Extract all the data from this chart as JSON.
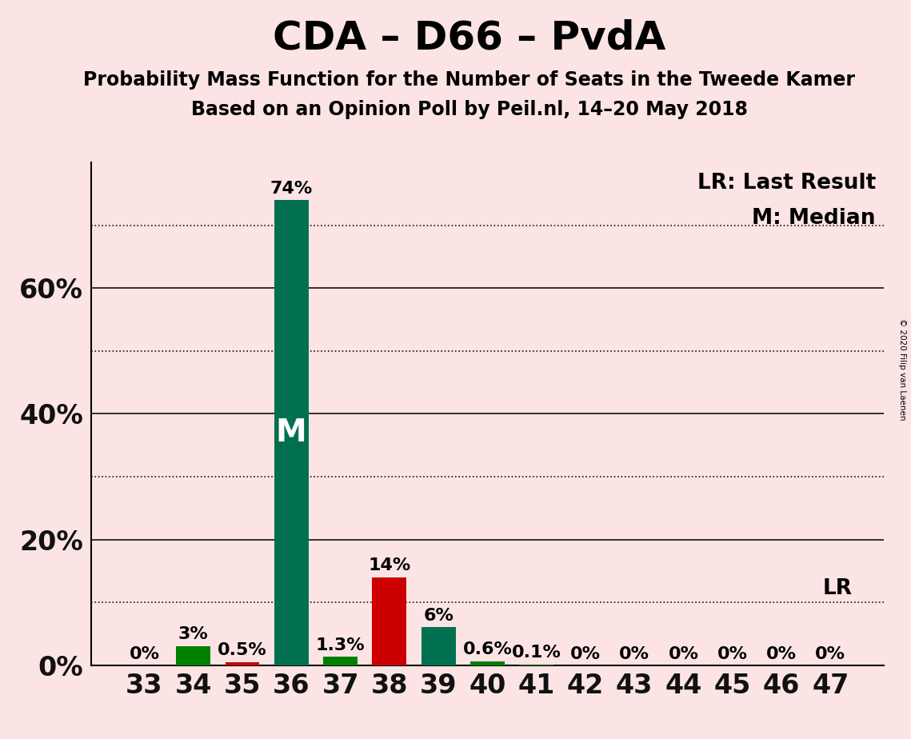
{
  "title": "CDA – D66 – PvdA",
  "subtitle1": "Probability Mass Function for the Number of Seats in the Tweede Kamer",
  "subtitle2": "Based on an Opinion Poll by Peil.nl, 14–20 May 2018",
  "copyright": "© 2020 Filip van Laenen",
  "background_color": "#fce4e4",
  "categories": [
    33,
    34,
    35,
    36,
    37,
    38,
    39,
    40,
    41,
    42,
    43,
    44,
    45,
    46,
    47
  ],
  "values": [
    0.0,
    3.0,
    0.5,
    74.0,
    1.3,
    14.0,
    6.0,
    0.6,
    0.1,
    0.0,
    0.0,
    0.0,
    0.0,
    0.0,
    0.0
  ],
  "bar_colors": [
    "#008000",
    "#008000",
    "#cc0000",
    "#007050",
    "#008000",
    "#cc0000",
    "#007050",
    "#008000",
    "#008000",
    "#008000",
    "#008000",
    "#008000",
    "#008000",
    "#008000",
    "#008000"
  ],
  "labels": [
    "0%",
    "3%",
    "0.5%",
    "74%",
    "1.3%",
    "14%",
    "6%",
    "0.6%",
    "0.1%",
    "0%",
    "0%",
    "0%",
    "0%",
    "0%",
    "0%"
  ],
  "median_seat": 36,
  "lr_value": 10.0,
  "lr_label": "LR",
  "legend_lr": "LR: Last Result",
  "legend_m": "M: Median",
  "ylim_max": 80,
  "ytick_major": [
    0,
    20,
    40,
    60
  ],
  "ytick_minor_dotted": [
    10,
    30,
    50,
    70
  ],
  "grid_color": "#111111",
  "title_fontsize": 36,
  "subtitle_fontsize": 17,
  "axis_tick_fontsize": 24,
  "bar_label_fontsize": 16,
  "median_label_fontsize": 28,
  "legend_fontsize": 19
}
